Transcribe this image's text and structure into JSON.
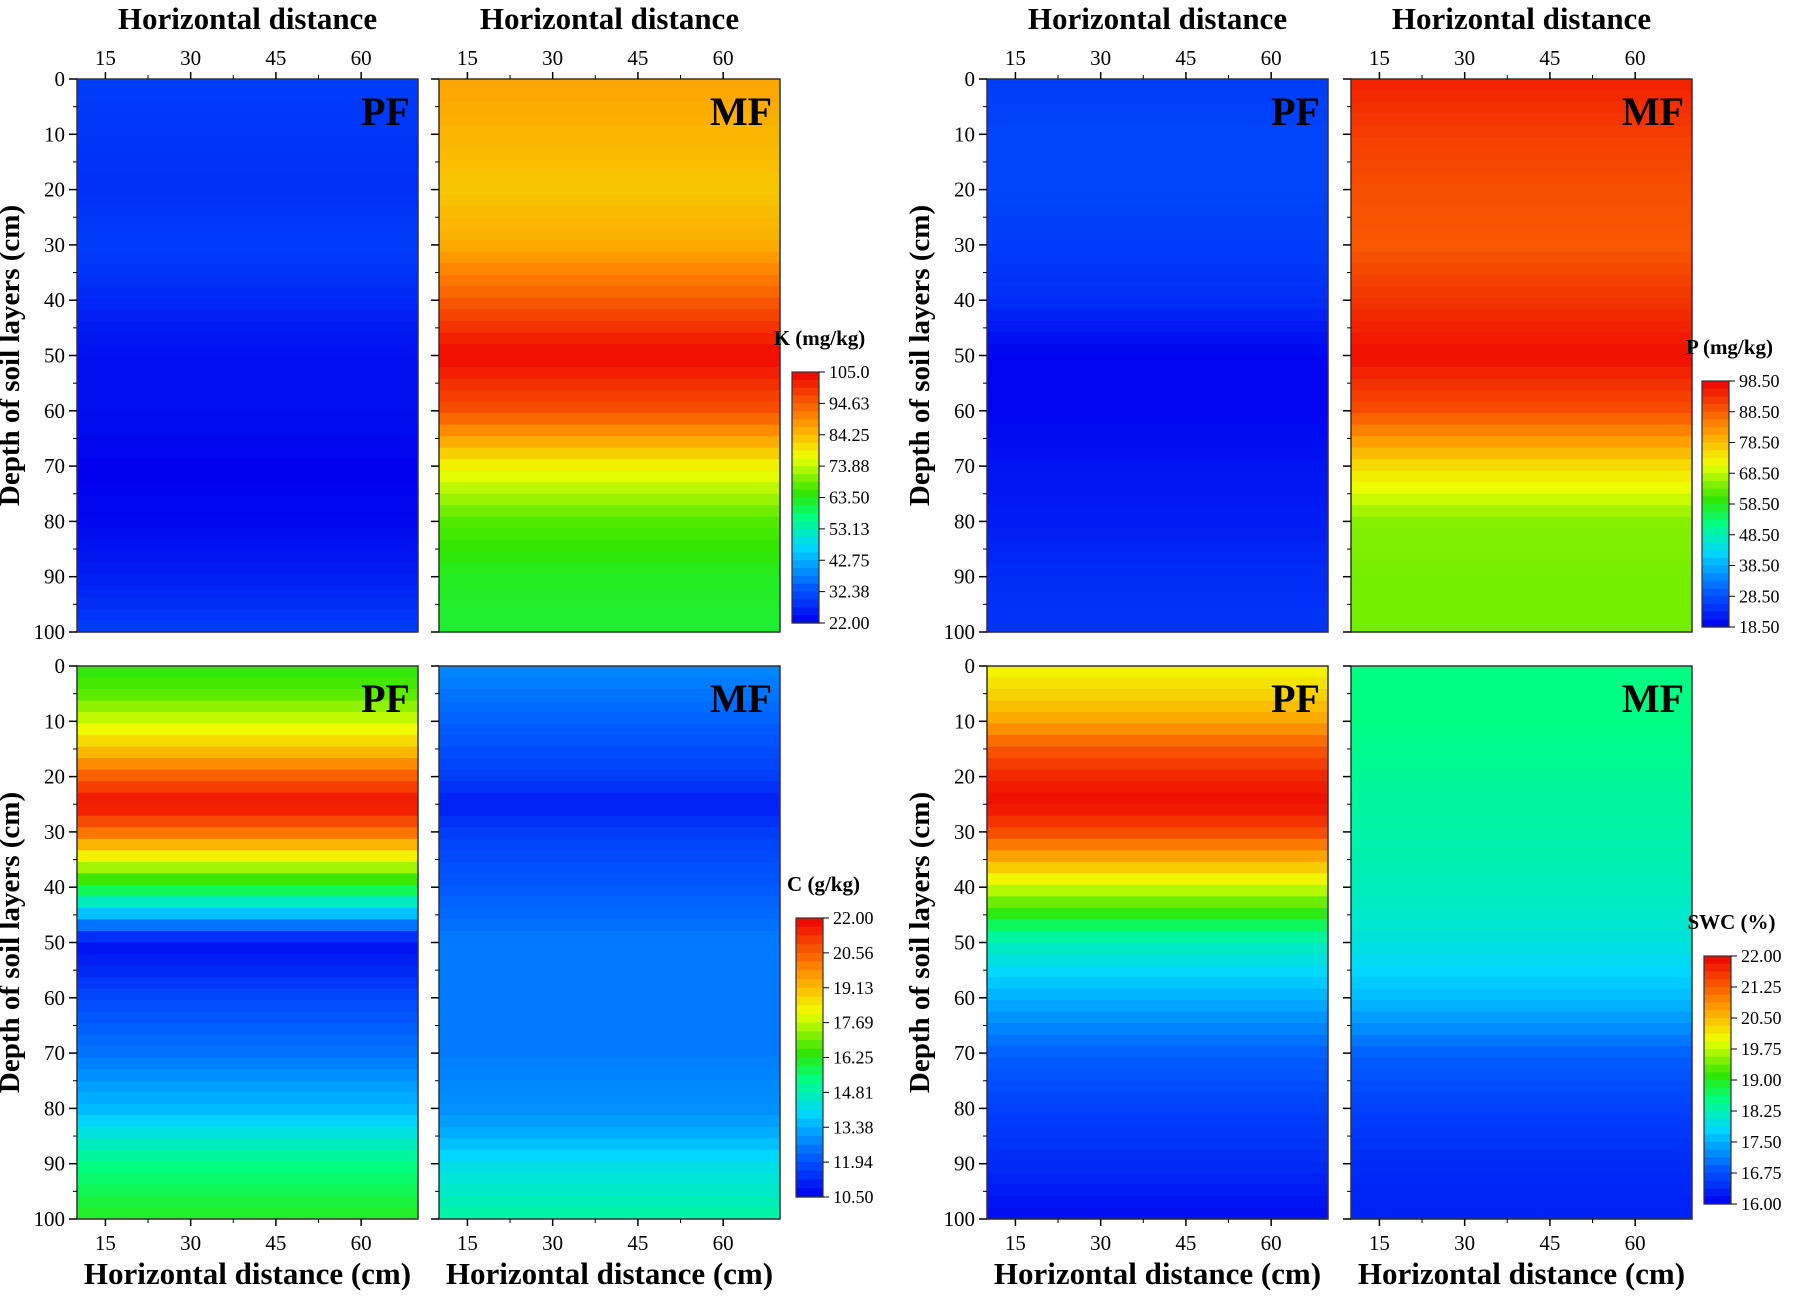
{
  "figure": {
    "panels": [
      {
        "label": "PF",
        "top_title": "Horizontal distance",
        "bottom_title": "",
        "ylabel": "Depth of soil layers (cm)",
        "show_top_ticks": true,
        "show_bottom_ticks": false
      },
      {
        "label": "MF",
        "top_title": "Horizontal distance",
        "bottom_title": "",
        "ylabel": "",
        "show_top_ticks": true,
        "show_bottom_ticks": false
      },
      {
        "label": "PF",
        "top_title": "Horizontal distance",
        "bottom_title": "",
        "ylabel": "Depth of soil layers (cm)",
        "show_top_ticks": true,
        "show_bottom_ticks": false
      },
      {
        "label": "MF",
        "top_title": "Horizontal distance",
        "bottom_title": "",
        "ylabel": "",
        "show_top_ticks": true,
        "show_bottom_ticks": false
      },
      {
        "label": "PF",
        "top_title": "",
        "bottom_title": "Horizontal distance (cm)",
        "ylabel": "Depth of soil layers (cm)",
        "show_top_ticks": false,
        "show_bottom_ticks": true
      },
      {
        "label": "MF",
        "top_title": "",
        "bottom_title": "Horizontal distance (cm)",
        "ylabel": "",
        "show_top_ticks": false,
        "show_bottom_ticks": true
      },
      {
        "label": "PF",
        "top_title": "",
        "bottom_title": "Horizontal distance (cm)",
        "ylabel": "Depth of soil layers (cm)",
        "show_top_ticks": false,
        "show_bottom_ticks": true
      },
      {
        "label": "MF",
        "top_title": "",
        "bottom_title": "Horizontal distance (cm)",
        "ylabel": "",
        "show_top_ticks": false,
        "show_bottom_ticks": true
      }
    ],
    "colorbars": [
      {
        "title": "K (mg/kg)",
        "min": 22.0,
        "max": 105.0,
        "ticks": [
          "105.0",
          "94.63",
          "84.25",
          "73.88",
          "63.50",
          "53.13",
          "42.75",
          "32.38",
          "22.00"
        ]
      },
      {
        "title": "P (mg/kg)",
        "min": 18.5,
        "max": 98.5,
        "ticks": [
          "98.50",
          "88.50",
          "78.50",
          "68.50",
          "58.50",
          "48.50",
          "38.50",
          "28.50",
          "18.50"
        ]
      },
      {
        "title": "C (g/kg)",
        "min": 10.5,
        "max": 22.0,
        "ticks": [
          "22.00",
          "20.56",
          "19.13",
          "17.69",
          "16.25",
          "14.81",
          "13.38",
          "11.94",
          "10.50"
        ]
      },
      {
        "title": "SWC (%)",
        "min": 16.0,
        "max": 22.0,
        "ticks": [
          "22.00",
          "21.25",
          "20.50",
          "19.75",
          "19.00",
          "18.25",
          "17.50",
          "16.75",
          "16.00"
        ]
      }
    ]
  },
  "chart_data": [
    {
      "type": "heatmap",
      "variable": "K (mg/kg)",
      "label": "PF",
      "x_ticks": [
        15,
        30,
        45,
        60
      ],
      "y_ticks": [
        0,
        10,
        20,
        30,
        40,
        50,
        60,
        70,
        80,
        90,
        100
      ],
      "xlim": [
        10,
        70
      ],
      "ylim": [
        100,
        0
      ],
      "vmin": 22.0,
      "vmax": 105.0,
      "depth": [
        0,
        10,
        20,
        30,
        40,
        50,
        60,
        70,
        80,
        90,
        100
      ],
      "values": [
        30,
        29,
        28,
        30,
        27,
        24,
        24,
        22,
        23,
        26,
        30
      ]
    },
    {
      "type": "heatmap",
      "variable": "K (mg/kg)",
      "label": "MF",
      "x_ticks": [
        15,
        30,
        45,
        60
      ],
      "y_ticks": [
        0,
        10,
        20,
        30,
        40,
        50,
        60,
        70,
        80,
        90,
        100
      ],
      "xlim": [
        10,
        70
      ],
      "ylim": [
        100,
        0
      ],
      "vmin": 22.0,
      "vmax": 105.0,
      "depth": [
        0,
        10,
        20,
        30,
        40,
        50,
        60,
        70,
        80,
        90,
        100
      ],
      "values": [
        87,
        85,
        83,
        86,
        95,
        104,
        96,
        78,
        67,
        63,
        62
      ]
    },
    {
      "type": "heatmap",
      "variable": "P (mg/kg)",
      "label": "PF",
      "x_ticks": [
        15,
        30,
        45,
        60
      ],
      "y_ticks": [
        0,
        10,
        20,
        30,
        40,
        50,
        60,
        70,
        80,
        90,
        100
      ],
      "xlim": [
        10,
        70
      ],
      "ylim": [
        100,
        0
      ],
      "vmin": 18.5,
      "vmax": 98.5,
      "depth": [
        0,
        10,
        20,
        30,
        40,
        50,
        60,
        70,
        80,
        90,
        100
      ],
      "values": [
        26,
        27,
        27,
        26,
        24,
        19,
        19,
        21,
        22,
        24,
        25
      ]
    },
    {
      "type": "heatmap",
      "variable": "P (mg/kg)",
      "label": "MF",
      "x_ticks": [
        15,
        30,
        45,
        60
      ],
      "y_ticks": [
        0,
        10,
        20,
        30,
        40,
        50,
        60,
        70,
        80,
        90,
        100
      ],
      "xlim": [
        10,
        70
      ],
      "ylim": [
        100,
        0
      ],
      "vmin": 18.5,
      "vmax": 98.5,
      "depth": [
        0,
        10,
        20,
        30,
        40,
        50,
        60,
        70,
        80,
        90,
        100
      ],
      "values": [
        95,
        92,
        90,
        89,
        93,
        97,
        90,
        75,
        65,
        64,
        64
      ]
    },
    {
      "type": "heatmap",
      "variable": "C (g/kg)",
      "label": "PF",
      "x_ticks": [
        15,
        30,
        45,
        60
      ],
      "y_ticks": [
        0,
        10,
        20,
        30,
        40,
        50,
        60,
        70,
        80,
        90,
        100
      ],
      "xlim": [
        10,
        70
      ],
      "ylim": [
        100,
        0
      ],
      "vmin": 10.5,
      "vmax": 22.0,
      "depth": [
        0,
        5,
        10,
        15,
        20,
        25,
        30,
        35,
        40,
        45,
        50,
        55,
        60,
        70,
        80,
        90,
        100
      ],
      "values": [
        16.3,
        16.8,
        17.8,
        19.0,
        20.6,
        21.8,
        20.3,
        18.0,
        16.0,
        13.5,
        10.8,
        11.2,
        11.8,
        12.5,
        13.5,
        15.3,
        16.2
      ]
    },
    {
      "type": "heatmap",
      "variable": "C (g/kg)",
      "label": "MF",
      "x_ticks": [
        15,
        30,
        45,
        60
      ],
      "y_ticks": [
        0,
        10,
        20,
        30,
        40,
        50,
        60,
        70,
        80,
        90,
        100
      ],
      "xlim": [
        10,
        70
      ],
      "ylim": [
        100,
        0
      ],
      "vmin": 10.5,
      "vmax": 22.0,
      "depth": [
        0,
        10,
        20,
        25,
        30,
        40,
        50,
        60,
        70,
        80,
        85,
        90,
        100
      ],
      "values": [
        12.8,
        12.2,
        11.6,
        11.0,
        11.6,
        12.1,
        12.6,
        12.6,
        12.6,
        12.9,
        13.4,
        14.2,
        15.0
      ]
    },
    {
      "type": "heatmap",
      "variable": "SWC (%)",
      "label": "PF",
      "x_ticks": [
        15,
        30,
        45,
        60
      ],
      "y_ticks": [
        0,
        10,
        20,
        30,
        40,
        50,
        60,
        70,
        80,
        90,
        100
      ],
      "xlim": [
        10,
        70
      ],
      "ylim": [
        100,
        0
      ],
      "vmin": 16.0,
      "vmax": 22.0,
      "depth": [
        0,
        5,
        10,
        15,
        20,
        25,
        30,
        40,
        45,
        50,
        60,
        70,
        80,
        90,
        100
      ],
      "values": [
        20.0,
        20.3,
        20.7,
        21.3,
        21.7,
        21.9,
        21.4,
        19.8,
        19.0,
        18.2,
        17.5,
        16.9,
        16.6,
        16.4,
        16.1
      ]
    },
    {
      "type": "heatmap",
      "variable": "SWC (%)",
      "label": "MF",
      "x_ticks": [
        15,
        30,
        45,
        60
      ],
      "y_ticks": [
        0,
        10,
        20,
        30,
        40,
        50,
        60,
        70,
        80,
        90,
        100
      ],
      "xlim": [
        10,
        70
      ],
      "ylim": [
        100,
        0
      ],
      "vmin": 16.0,
      "vmax": 22.0,
      "depth": [
        0,
        10,
        20,
        30,
        40,
        50,
        60,
        70,
        80,
        90,
        100
      ],
      "values": [
        18.5,
        18.5,
        18.4,
        18.3,
        18.2,
        18.0,
        17.6,
        16.9,
        16.6,
        16.4,
        16.3
      ]
    }
  ]
}
